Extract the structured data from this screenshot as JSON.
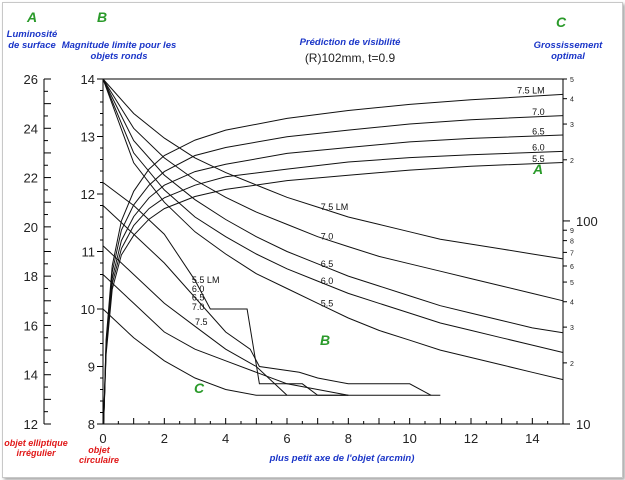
{
  "header": {
    "col_a_letter": "A",
    "col_a_title": "Luminosité de surface",
    "col_b_letter": "B",
    "col_b_title": "Magnitude limite pour les objets ronds",
    "title": "Prédiction de visibilité",
    "subtitle": "(R)102mm, t=0.9",
    "col_c_letter": "C",
    "col_c_title": "Grossissement optimal"
  },
  "footer": {
    "irregular_label": "objet elliptique irrégulier",
    "circular_label": "objet circulaire",
    "xlabel": "plus petit axe de l'objet (arcmin)"
  },
  "colors": {
    "line": "#111111",
    "frame": "#000000",
    "blue": "#1a35c8",
    "green": "#2a9a2a",
    "red": "#e01818"
  },
  "chart_data": {
    "type": "line",
    "xlabel": "plus petit axe de l'objet (arcmin)",
    "xlim": [
      0,
      15
    ],
    "x_ticks": [
      0,
      2,
      4,
      6,
      8,
      10,
      12,
      14
    ],
    "left_axis_A": {
      "label": "Luminosité de surface",
      "ylim": [
        12,
        26
      ],
      "ticks": [
        12,
        14,
        16,
        18,
        20,
        22,
        24,
        26
      ]
    },
    "inner_axis_B": {
      "label": "Magnitude limite pour les objets ronds",
      "ylim": [
        8,
        14
      ],
      "ticks": [
        8,
        9,
        10,
        11,
        12,
        13,
        14
      ]
    },
    "right_axis_C": {
      "label": "Grossissement optimal",
      "scale": "log",
      "ylim": [
        10,
        500
      ],
      "major_ticks": [
        10,
        100
      ],
      "minor_ticks": [
        2,
        3,
        4,
        5,
        6,
        7,
        8,
        9,
        2,
        3,
        4,
        5
      ],
      "minor_values": [
        20,
        30,
        40,
        50,
        60,
        70,
        80,
        90,
        200,
        300,
        400,
        500
      ]
    },
    "series_A": [
      {
        "name": "7.5 LM",
        "x": [
          0,
          1,
          2,
          3,
          4,
          5,
          6,
          7,
          8,
          9,
          10,
          11,
          12,
          13,
          14,
          15
        ],
        "values": [
          26,
          24.6,
          23.6,
          22.8,
          22.2,
          21.7,
          21.2,
          20.8,
          20.4,
          20.1,
          19.8,
          19.5,
          19.3,
          19.1,
          18.9,
          18.7
        ]
      },
      {
        "name": "7.0",
        "x": [
          0,
          1,
          2,
          3,
          4,
          5,
          6,
          7,
          8,
          9,
          10,
          11,
          12,
          13,
          14,
          15
        ],
        "values": [
          26,
          24.0,
          22.8,
          21.9,
          21.2,
          20.6,
          20.1,
          19.6,
          19.2,
          18.8,
          18.5,
          18.2,
          17.9,
          17.6,
          17.3,
          17.0
        ]
      },
      {
        "name": "6.5",
        "x": [
          0,
          1,
          2,
          3,
          4,
          5,
          6,
          7,
          8,
          9,
          10,
          11,
          12,
          13,
          14,
          15
        ],
        "values": [
          26,
          23.5,
          22.1,
          21.1,
          20.3,
          19.6,
          19.0,
          18.5,
          18.0,
          17.6,
          17.2,
          16.8,
          16.5,
          16.2,
          15.9,
          15.7
        ]
      },
      {
        "name": "6.0",
        "x": [
          0,
          1,
          2,
          3,
          4,
          5,
          6,
          7,
          8,
          9,
          10,
          11,
          12,
          13,
          14,
          15
        ],
        "values": [
          26,
          23.0,
          21.5,
          20.4,
          19.6,
          18.9,
          18.3,
          17.8,
          17.3,
          16.9,
          16.5,
          16.1,
          15.8,
          15.5,
          15.2,
          14.9
        ]
      },
      {
        "name": "5.5",
        "x": [
          0,
          1,
          2,
          3,
          4,
          5,
          6,
          7,
          8,
          9,
          10,
          11,
          12,
          13,
          14,
          15
        ],
        "values": [
          26,
          22.6,
          21.0,
          19.8,
          18.9,
          18.1,
          17.5,
          16.9,
          16.3,
          15.8,
          15.4,
          15.0,
          14.7,
          14.4,
          14.1,
          13.8
        ]
      }
    ],
    "series_B": [
      {
        "name": "5.5 LM",
        "x": [
          0,
          1,
          2,
          3,
          3.5,
          4.7,
          5.1,
          6.5,
          7.0,
          7.7,
          8.0,
          10.8,
          11.0
        ],
        "values": [
          12.2,
          11.8,
          11.3,
          10.5,
          10.0,
          10.0,
          8.7,
          8.7,
          8.5,
          8.5,
          8.5,
          8.5,
          8.5
        ]
      },
      {
        "name": "6.0",
        "x": [
          0,
          1,
          2,
          3,
          4,
          4.8,
          5.1,
          6.4,
          7,
          8,
          10,
          10.7
        ],
        "values": [
          11.8,
          11.3,
          10.8,
          10.2,
          9.6,
          9.3,
          9.0,
          8.9,
          8.8,
          8.7,
          8.7,
          8.5
        ]
      },
      {
        "name": "6.5",
        "x": [
          0,
          1,
          2,
          3,
          4,
          5,
          5.6,
          6,
          7,
          8
        ],
        "values": [
          11.1,
          10.6,
          10.1,
          9.7,
          9.3,
          9.0,
          8.7,
          8.5,
          8.5,
          8.5
        ]
      },
      {
        "name": "7.0",
        "x": [
          0,
          1,
          2,
          3,
          4,
          5,
          6,
          7,
          8
        ],
        "values": [
          10.6,
          10.1,
          9.6,
          9.3,
          9.1,
          8.9,
          8.7,
          8.6,
          8.5
        ]
      },
      {
        "name": "7.5",
        "x": [
          0,
          1,
          2,
          3,
          4,
          5,
          6
        ],
        "values": [
          10.0,
          9.5,
          9.1,
          8.8,
          8.6,
          8.5,
          8.5
        ]
      }
    ],
    "series_C": [
      {
        "name": "7.5 LM",
        "x": [
          0.02,
          0.1,
          0.3,
          0.6,
          1,
          1.5,
          2,
          3,
          4,
          6,
          8,
          10,
          12,
          15
        ],
        "values": [
          10,
          26,
          60,
          100,
          140,
          180,
          210,
          250,
          280,
          320,
          350,
          375,
          395,
          420
        ]
      },
      {
        "name": "7.0",
        "x": [
          0.02,
          0.1,
          0.3,
          0.6,
          1,
          1.5,
          2,
          3,
          4,
          6,
          8,
          10,
          12,
          15
        ],
        "values": [
          10,
          25,
          56,
          90,
          120,
          150,
          175,
          210,
          230,
          260,
          280,
          300,
          315,
          330
        ]
      },
      {
        "name": "6.5",
        "x": [
          0.02,
          0.1,
          0.3,
          0.6,
          1,
          1.5,
          2,
          3,
          4,
          6,
          8,
          10,
          12,
          15
        ],
        "values": [
          10,
          24,
          52,
          80,
          105,
          130,
          150,
          175,
          190,
          215,
          230,
          245,
          255,
          265
        ]
      },
      {
        "name": "6.0",
        "x": [
          0.02,
          0.1,
          0.3,
          0.6,
          1,
          1.5,
          2,
          3,
          4,
          6,
          8,
          10,
          12,
          15
        ],
        "values": [
          10,
          23,
          49,
          73,
          95,
          115,
          130,
          150,
          165,
          180,
          195,
          205,
          212,
          220
        ]
      },
      {
        "name": "5.5",
        "x": [
          0.02,
          0.1,
          0.3,
          0.6,
          1,
          1.5,
          2,
          3,
          4,
          6,
          8,
          10,
          12,
          15
        ],
        "values": [
          10,
          22,
          46,
          68,
          85,
          102,
          115,
          132,
          143,
          158,
          168,
          178,
          186,
          194
        ]
      }
    ],
    "region_letters": {
      "A": "A",
      "B": "B",
      "C": "C"
    }
  }
}
